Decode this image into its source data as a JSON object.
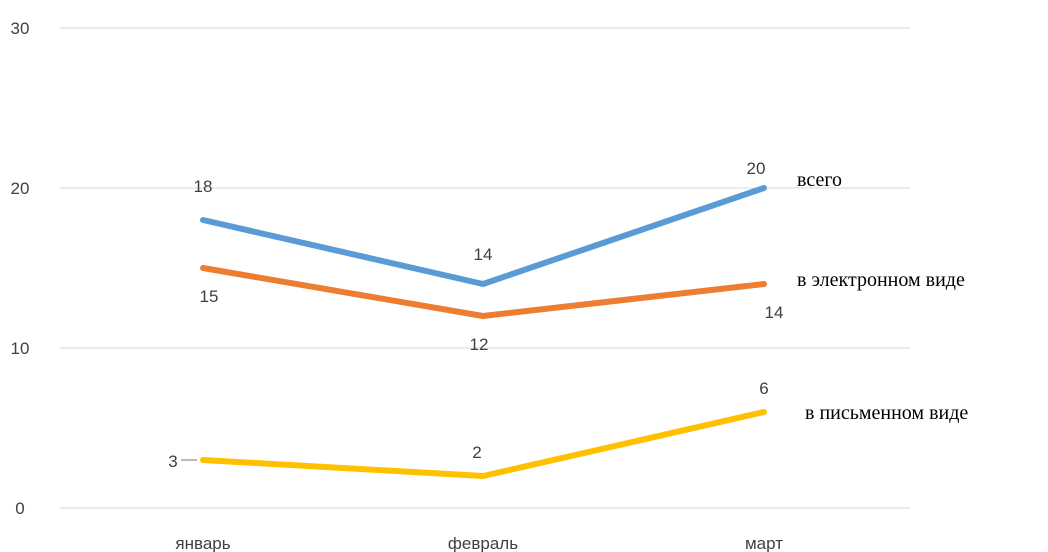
{
  "chart_data": {
    "type": "line",
    "categories": [
      "январь",
      "февраль",
      "март"
    ],
    "ylim": [
      0,
      30
    ],
    "yticks": [
      0,
      10,
      20,
      30
    ],
    "grid": true,
    "legend": "inline-right",
    "title": "",
    "xlabel": "",
    "ylabel": "",
    "series": [
      {
        "name": "всего",
        "values": [
          18,
          14,
          20
        ],
        "color": "#5B9BD5"
      },
      {
        "name": "в электронном виде",
        "values": [
          15,
          12,
          14
        ],
        "color": "#ED7D31"
      },
      {
        "name": "в письменном виде",
        "values": [
          3,
          2,
          6
        ],
        "color": "#FFC000"
      }
    ]
  }
}
